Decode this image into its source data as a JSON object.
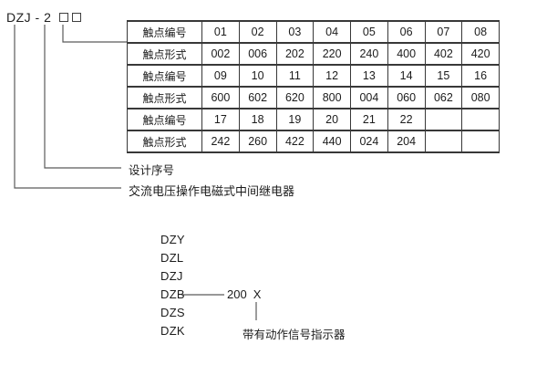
{
  "model_code": {
    "text": "DZJ - 2",
    "placeholder_box_count": 2
  },
  "spec_table": {
    "rows": [
      {
        "header": "触点编号",
        "cells": [
          "01",
          "02",
          "03",
          "04",
          "05",
          "06",
          "07",
          "08"
        ]
      },
      {
        "header": "触点形式",
        "cells": [
          "002",
          "006",
          "202",
          "220",
          "240",
          "400",
          "402",
          "420"
        ]
      },
      {
        "header": "触点编号",
        "cells": [
          "09",
          "10",
          "11",
          "12",
          "13",
          "14",
          "15",
          "16"
        ]
      },
      {
        "header": "触点形式",
        "cells": [
          "600",
          "602",
          "620",
          "800",
          "004",
          "060",
          "062",
          "080"
        ]
      },
      {
        "header": "触点编号",
        "cells": [
          "17",
          "18",
          "19",
          "20",
          "21",
          "22",
          "",
          ""
        ]
      },
      {
        "header": "触点形式",
        "cells": [
          "242",
          "260",
          "422",
          "440",
          "024",
          "204",
          "",
          ""
        ]
      }
    ]
  },
  "callouts": {
    "design_serial_label": "设计序号",
    "relay_type_label": "交流电压操作电磁式中间继电器"
  },
  "series_legend": {
    "items": [
      "DZY",
      "DZL",
      "DZJ",
      "DZB",
      "DZS",
      "DZK"
    ],
    "dzb_code": "200",
    "dzb_suffix": "X",
    "indicator_note": "带有动作信号指示器"
  },
  "colors": {
    "text": "#1f1f1f",
    "connector_line": "#5a5a5a",
    "table_border": "#383838"
  }
}
